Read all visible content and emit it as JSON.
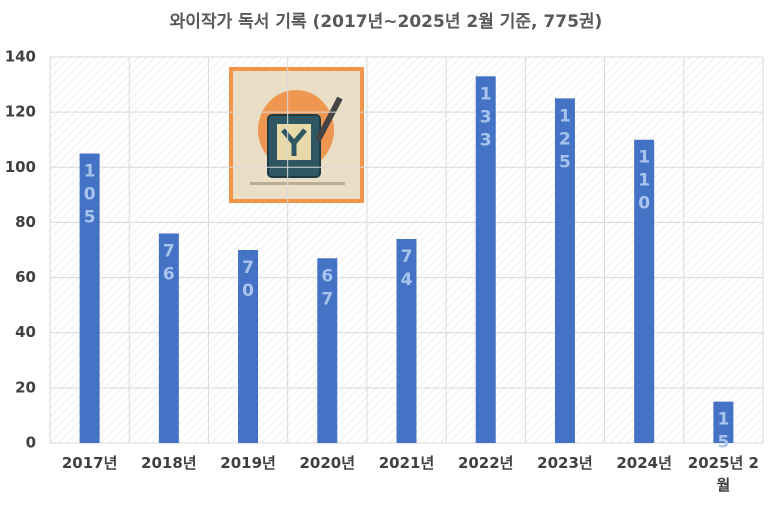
{
  "chart_data": {
    "type": "bar",
    "title": "와이작가 독서 기록 (2017년~2025년 2월 기준, 775권)",
    "categories": [
      "2017년",
      "2018년",
      "2019년",
      "2020년",
      "2021년",
      "2022년",
      "2023년",
      "2024년",
      "2025년 2월"
    ],
    "values": [
      105,
      76,
      70,
      67,
      74,
      133,
      125,
      110,
      15
    ],
    "color": "#4472c4",
    "label_color": "#a9c4ec",
    "ylim": [
      0,
      140
    ],
    "yticks": [
      0,
      20,
      40,
      60,
      80,
      100,
      120,
      140
    ],
    "grid": true
  }
}
